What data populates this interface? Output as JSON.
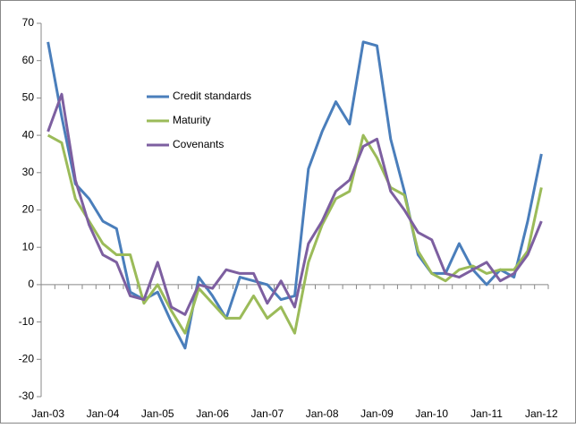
{
  "chart_data": {
    "type": "line",
    "categories": [
      "Jan-03",
      null,
      null,
      null,
      "Jan-04",
      null,
      null,
      null,
      "Jan-05",
      null,
      null,
      null,
      "Jan-06",
      null,
      null,
      null,
      "Jan-07",
      null,
      null,
      null,
      "Jan-08",
      null,
      null,
      null,
      "Jan-09",
      null,
      null,
      null,
      "Jan-10",
      null,
      null,
      null,
      "Jan-11",
      null,
      null,
      null,
      "Jan-12"
    ],
    "series": [
      {
        "name": "Credit standards",
        "color": "#4a7ebb",
        "values": [
          65,
          45,
          27,
          23,
          17,
          15,
          -2,
          -4,
          -2,
          -10,
          -17,
          2,
          -3,
          -9,
          2,
          1,
          0,
          -4,
          -3,
          31,
          41,
          49,
          43,
          65,
          64,
          39,
          25,
          8,
          3,
          3,
          11,
          4,
          0,
          4,
          2,
          17,
          35
        ]
      },
      {
        "name": "Maturity",
        "color": "#9bbb59",
        "values": [
          40,
          38,
          23,
          17,
          11,
          8,
          8,
          -5,
          0,
          -7,
          -13,
          -1,
          -5,
          -9,
          -9,
          -3,
          -9,
          -6,
          -13,
          6,
          16,
          23,
          25,
          40,
          34,
          26,
          24,
          9,
          3,
          1,
          4,
          5,
          3,
          4,
          4,
          9,
          26
        ]
      },
      {
        "name": "Covenants",
        "color": "#7d5fa0",
        "values": [
          41,
          51,
          28,
          16,
          8,
          6,
          -3,
          -4,
          6,
          -6,
          -8,
          0,
          -1,
          4,
          3,
          3,
          -5,
          1,
          -6,
          11,
          17,
          25,
          28,
          37,
          39,
          25,
          20,
          14,
          12,
          3,
          2,
          4,
          6,
          1,
          3,
          8,
          17
        ]
      }
    ],
    "ylim": [
      -30,
      70
    ],
    "yticks": [
      -30,
      -20,
      -10,
      0,
      10,
      20,
      30,
      40,
      50,
      60,
      70
    ]
  }
}
